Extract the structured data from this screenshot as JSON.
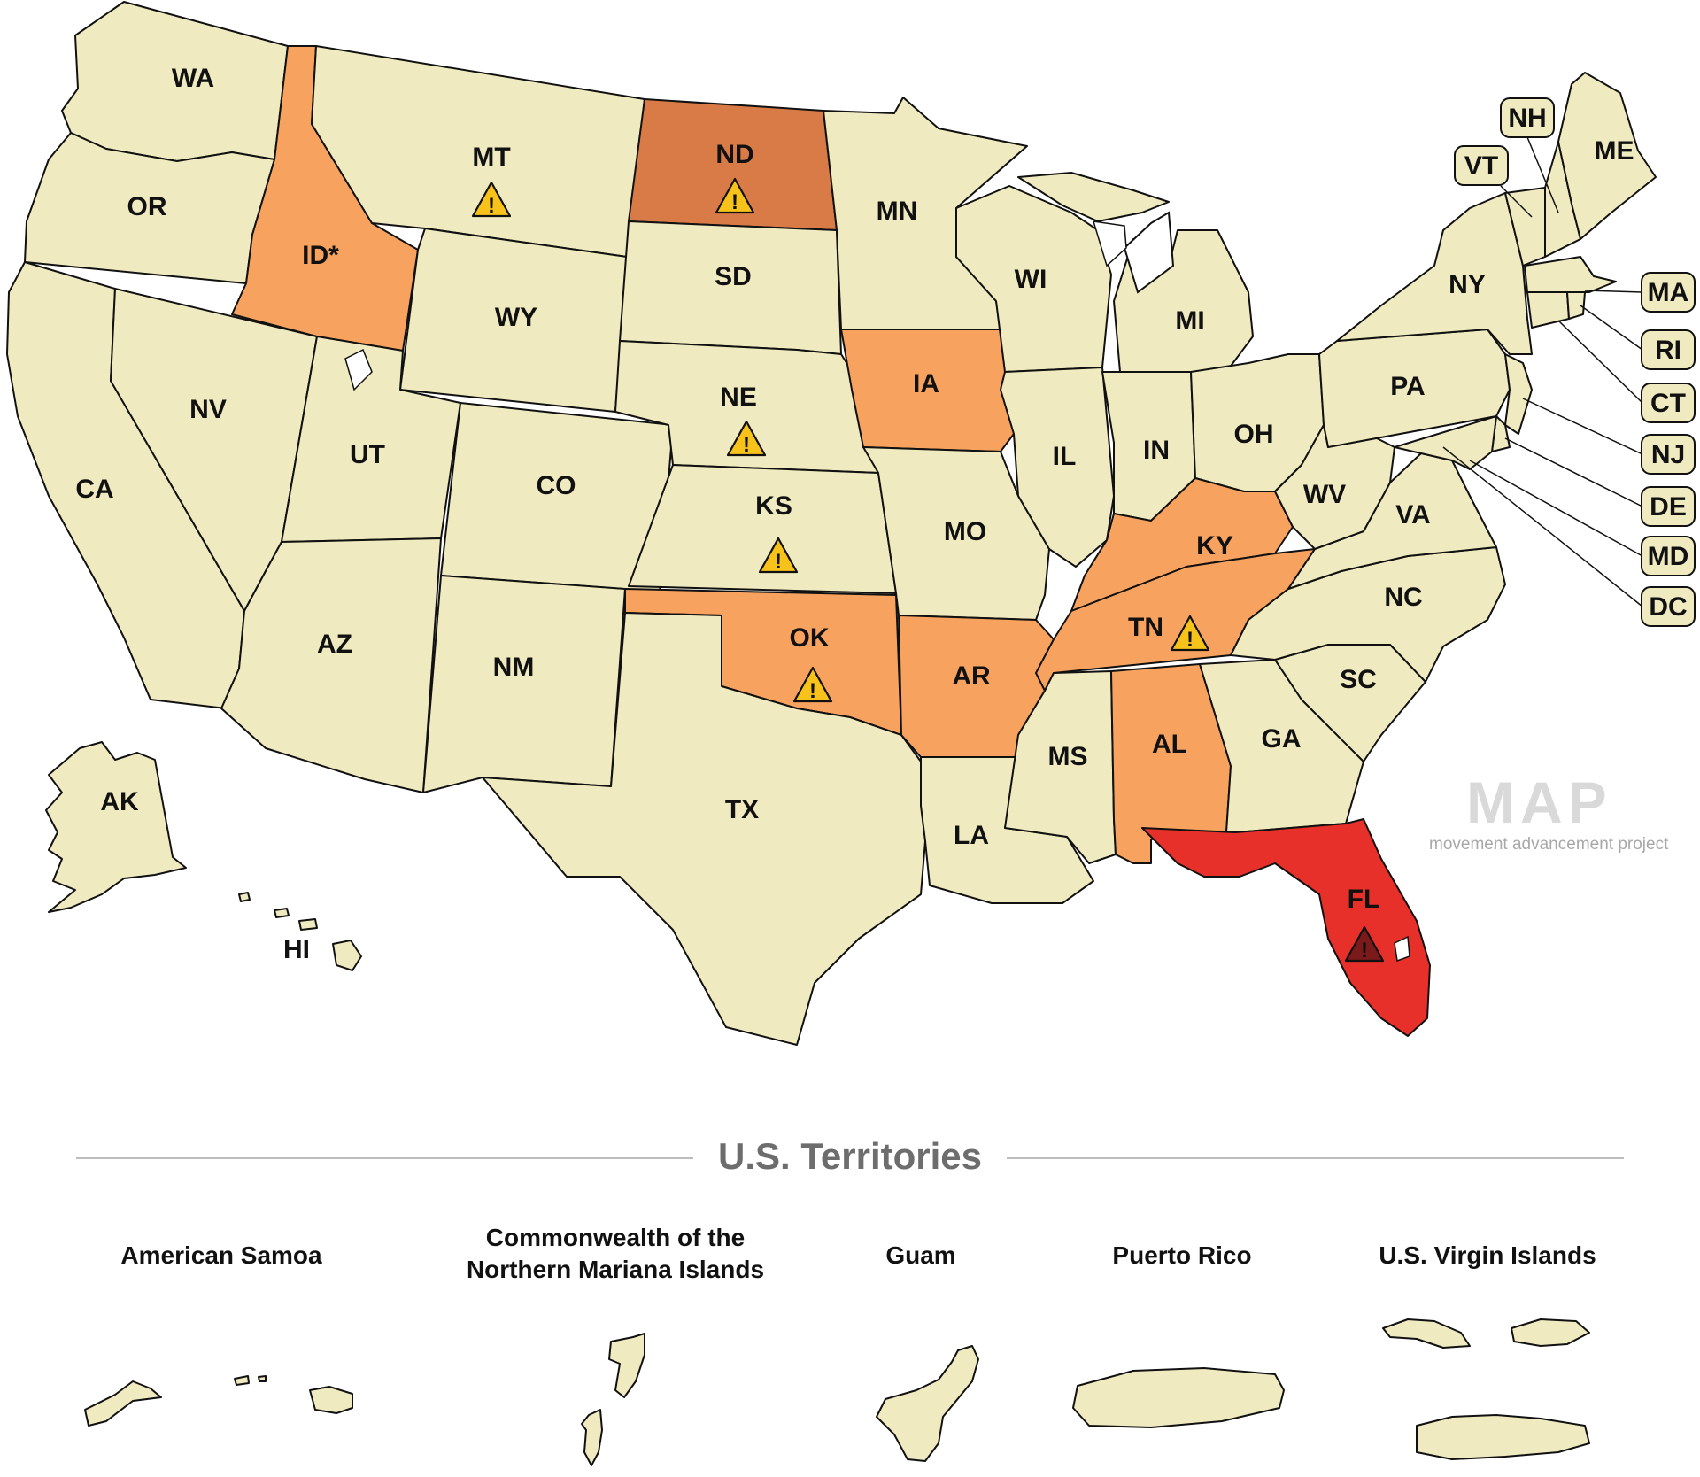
{
  "colors": {
    "neutral": "#f0eac0",
    "light_orange": "#f7a35f",
    "dark_orange": "#d97b46",
    "red": "#e8302a",
    "warning_yellow": "#f7c21a",
    "warning_dark": "#7a1a1a",
    "outline": "#111111",
    "rule": "#bdbdbd",
    "territories_title": "#6d6d6d"
  },
  "states": [
    {
      "abbr": "WA",
      "fill": "neutral"
    },
    {
      "abbr": "OR",
      "fill": "neutral"
    },
    {
      "abbr": "CA",
      "fill": "neutral"
    },
    {
      "abbr": "ID*",
      "fill": "light_orange"
    },
    {
      "abbr": "NV",
      "fill": "neutral"
    },
    {
      "abbr": "MT",
      "fill": "neutral",
      "warning": "yellow"
    },
    {
      "abbr": "WY",
      "fill": "neutral"
    },
    {
      "abbr": "UT",
      "fill": "neutral"
    },
    {
      "abbr": "AZ",
      "fill": "neutral"
    },
    {
      "abbr": "CO",
      "fill": "neutral"
    },
    {
      "abbr": "NM",
      "fill": "neutral"
    },
    {
      "abbr": "ND",
      "fill": "dark_orange",
      "warning": "yellow"
    },
    {
      "abbr": "SD",
      "fill": "neutral"
    },
    {
      "abbr": "NE",
      "fill": "neutral",
      "warning": "yellow"
    },
    {
      "abbr": "KS",
      "fill": "neutral",
      "warning": "yellow"
    },
    {
      "abbr": "OK",
      "fill": "light_orange",
      "warning": "yellow"
    },
    {
      "abbr": "TX",
      "fill": "neutral"
    },
    {
      "abbr": "MN",
      "fill": "neutral"
    },
    {
      "abbr": "IA",
      "fill": "light_orange"
    },
    {
      "abbr": "MO",
      "fill": "neutral"
    },
    {
      "abbr": "AR",
      "fill": "light_orange"
    },
    {
      "abbr": "LA",
      "fill": "neutral"
    },
    {
      "abbr": "WI",
      "fill": "neutral"
    },
    {
      "abbr": "IL",
      "fill": "neutral"
    },
    {
      "abbr": "MI",
      "fill": "neutral"
    },
    {
      "abbr": "IN",
      "fill": "neutral"
    },
    {
      "abbr": "OH",
      "fill": "neutral"
    },
    {
      "abbr": "KY",
      "fill": "light_orange"
    },
    {
      "abbr": "TN",
      "fill": "light_orange",
      "warning": "yellow"
    },
    {
      "abbr": "MS",
      "fill": "neutral"
    },
    {
      "abbr": "AL",
      "fill": "light_orange"
    },
    {
      "abbr": "GA",
      "fill": "neutral"
    },
    {
      "abbr": "FL",
      "fill": "red",
      "warning": "dark"
    },
    {
      "abbr": "SC",
      "fill": "neutral"
    },
    {
      "abbr": "NC",
      "fill": "neutral"
    },
    {
      "abbr": "VA",
      "fill": "neutral"
    },
    {
      "abbr": "WV",
      "fill": "neutral"
    },
    {
      "abbr": "PA",
      "fill": "neutral"
    },
    {
      "abbr": "NY",
      "fill": "neutral"
    },
    {
      "abbr": "ME",
      "fill": "neutral"
    },
    {
      "abbr": "AK",
      "fill": "neutral"
    },
    {
      "abbr": "HI",
      "fill": "neutral"
    }
  ],
  "small_states": [
    {
      "abbr": "NH",
      "fill": "neutral"
    },
    {
      "abbr": "VT",
      "fill": "neutral"
    },
    {
      "abbr": "MA",
      "fill": "neutral"
    },
    {
      "abbr": "RI",
      "fill": "neutral"
    },
    {
      "abbr": "CT",
      "fill": "neutral"
    },
    {
      "abbr": "NJ",
      "fill": "neutral"
    },
    {
      "abbr": "DE",
      "fill": "neutral"
    },
    {
      "abbr": "MD",
      "fill": "neutral"
    },
    {
      "abbr": "DC",
      "fill": "neutral"
    }
  ],
  "logo": {
    "text": "MAP",
    "subtitle": "movement advancement project"
  },
  "territories": {
    "title": "U.S. Territories",
    "items": [
      {
        "name": "American Samoa"
      },
      {
        "name": "Commonwealth of the Northern Mariana Islands"
      },
      {
        "name": "Guam"
      },
      {
        "name": "Puerto Rico"
      },
      {
        "name": "U.S. Virgin Islands"
      }
    ]
  },
  "icons": {
    "warning": "warning-triangle-icon"
  }
}
